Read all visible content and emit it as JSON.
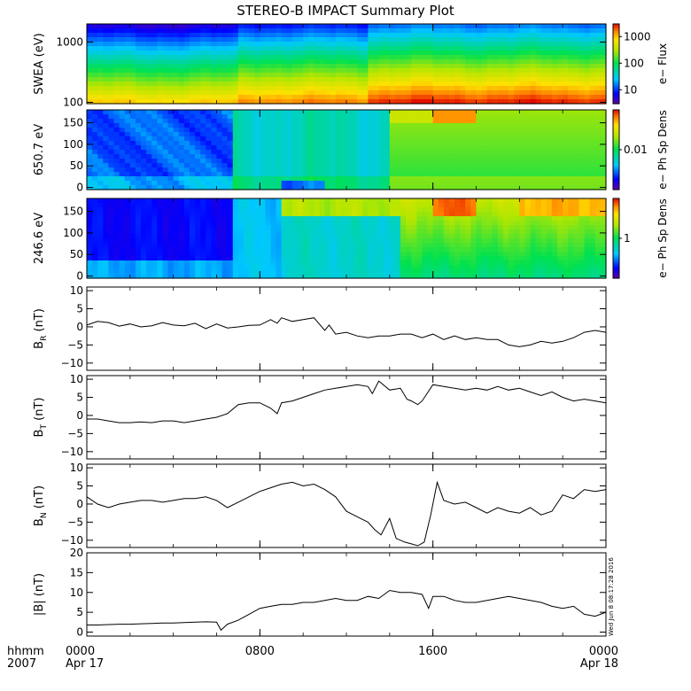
{
  "title": "STEREO-B IMPACT Summary Plot",
  "timestamp": "Wed Jun 8 08:17:28 2016",
  "time_axis": {
    "label_line1": "hhmm",
    "label_line2": "2007",
    "hours": [
      0,
      24
    ],
    "ticks": [
      {
        "hour": 0,
        "text": "0000",
        "date": "Apr 17"
      },
      {
        "hour": 8,
        "text": "0800",
        "date": ""
      },
      {
        "hour": 16,
        "text": "1600",
        "date": ""
      },
      {
        "hour": 24,
        "text": "0000",
        "date": "Apr 18"
      }
    ]
  },
  "chart_data": [
    {
      "type": "heatmap",
      "id": "swea",
      "ylabel": "SWEA (eV)",
      "yscale": "log",
      "ylim": [
        95,
        2000
      ],
      "yticks": [
        {
          "v": 100,
          "t": "100"
        },
        {
          "v": 1000,
          "t": "1000"
        }
      ],
      "colorbar": {
        "label": "e− Flux",
        "scale": "log",
        "range": [
          3,
          3000
        ],
        "ticks": [
          {
            "v": 10,
            "t": "10"
          },
          {
            "v": 100,
            "t": "100"
          },
          {
            "v": 1000,
            "t": "1000"
          }
        ]
      }
    },
    {
      "type": "heatmap",
      "id": "pad650",
      "ylabel": "650.7 eV",
      "ylim": [
        -5,
        180
      ],
      "yticks": [
        {
          "v": 0,
          "t": "0"
        },
        {
          "v": 50,
          "t": "50"
        },
        {
          "v": 100,
          "t": "100"
        },
        {
          "v": 150,
          "t": "150"
        }
      ],
      "colorbar": {
        "label": "e− Ph Sp Dens",
        "scale": "log",
        "range": [
          0.001,
          0.1
        ],
        "ticks": [
          {
            "v": 0.01,
            "t": "0.01"
          }
        ]
      }
    },
    {
      "type": "heatmap",
      "id": "pad246",
      "ylabel": "246.6 eV",
      "ylim": [
        -5,
        180
      ],
      "yticks": [
        {
          "v": 0,
          "t": "0"
        },
        {
          "v": 50,
          "t": "50"
        },
        {
          "v": 100,
          "t": "100"
        },
        {
          "v": 150,
          "t": "150"
        }
      ],
      "colorbar": {
        "label": "e− Ph Sp Dens",
        "scale": "log",
        "range": [
          0.1,
          10
        ],
        "ticks": [
          {
            "v": 1,
            "t": "1"
          }
        ]
      }
    },
    {
      "type": "line",
      "id": "br",
      "ylabel": "B",
      "ylabel_sub": "R",
      "ylabel_unit": " (nT)",
      "ylim": [
        -12,
        11
      ],
      "yticks": [
        {
          "v": -10,
          "t": "−10"
        },
        {
          "v": -5,
          "t": "−5"
        },
        {
          "v": 0,
          "t": "0"
        },
        {
          "v": 5,
          "t": "5"
        },
        {
          "v": 10,
          "t": "10"
        }
      ],
      "x": [
        0,
        0.5,
        1,
        1.5,
        2,
        2.5,
        3,
        3.5,
        4,
        4.5,
        5,
        5.5,
        6,
        6.5,
        7,
        7.5,
        8,
        8.5,
        8.8,
        9,
        9.5,
        10,
        10.5,
        11,
        11.2,
        11.5,
        12,
        12.5,
        13,
        13.5,
        14,
        14.5,
        15,
        15.5,
        16,
        16.5,
        17,
        17.5,
        18,
        18.5,
        19,
        19.5,
        20,
        20.5,
        21,
        21.5,
        22,
        22.5,
        23,
        23.5,
        24
      ],
      "y": [
        0.5,
        1.5,
        1.2,
        0.2,
        0.8,
        0.0,
        0.3,
        1.2,
        0.5,
        0.3,
        1.0,
        -0.5,
        0.8,
        -0.3,
        0.0,
        0.4,
        0.5,
        2.0,
        1.0,
        2.5,
        1.5,
        2.0,
        2.5,
        -1.0,
        0.5,
        -2.0,
        -1.5,
        -2.5,
        -3.0,
        -2.5,
        -2.5,
        -2.0,
        -2.0,
        -3.0,
        -2.0,
        -3.5,
        -2.5,
        -3.5,
        -3.0,
        -3.5,
        -3.5,
        -5.0,
        -5.5,
        -5.0,
        -4.0,
        -4.5,
        -4.0,
        -3.0,
        -1.5,
        -1.0,
        -1.5
      ]
    },
    {
      "type": "line",
      "id": "bt",
      "ylabel": "B",
      "ylabel_sub": "T",
      "ylabel_unit": " (nT)",
      "ylim": [
        -12,
        11
      ],
      "yticks": [
        {
          "v": -10,
          "t": "−10"
        },
        {
          "v": -5,
          "t": "−5"
        },
        {
          "v": 0,
          "t": "0"
        },
        {
          "v": 5,
          "t": "5"
        },
        {
          "v": 10,
          "t": "10"
        }
      ],
      "x": [
        0,
        0.5,
        1,
        1.5,
        2,
        2.5,
        3,
        3.5,
        4,
        4.5,
        5,
        5.5,
        6,
        6.5,
        7,
        7.5,
        8,
        8.5,
        8.8,
        9,
        9.5,
        10,
        10.5,
        11,
        11.5,
        12,
        12.5,
        13,
        13.2,
        13.5,
        14,
        14.5,
        14.8,
        15,
        15.3,
        15.5,
        16,
        16.5,
        17,
        17.5,
        18,
        18.5,
        19,
        19.5,
        20,
        20.5,
        21,
        21.5,
        22,
        22.5,
        23,
        23.5,
        24
      ],
      "y": [
        -1.0,
        -1.0,
        -1.5,
        -2.0,
        -2.0,
        -1.8,
        -2.0,
        -1.5,
        -1.5,
        -2.0,
        -1.5,
        -1.0,
        -0.5,
        0.5,
        3.0,
        3.5,
        3.5,
        2.0,
        0.5,
        3.5,
        4.0,
        5.0,
        6.0,
        7.0,
        7.5,
        8.0,
        8.5,
        8.0,
        6.0,
        9.5,
        7.0,
        7.5,
        4.5,
        4.0,
        3.0,
        4.0,
        8.5,
        8.0,
        7.5,
        7.0,
        7.5,
        7.0,
        8.0,
        7.0,
        7.5,
        6.5,
        5.5,
        6.5,
        5.0,
        4.0,
        4.5,
        4.0,
        3.5
      ]
    },
    {
      "type": "line",
      "id": "bn",
      "ylabel": "B",
      "ylabel_sub": "N",
      "ylabel_unit": " (nT)",
      "ylim": [
        -12,
        11
      ],
      "yticks": [
        {
          "v": -10,
          "t": "−10"
        },
        {
          "v": -5,
          "t": "−5"
        },
        {
          "v": 0,
          "t": "0"
        },
        {
          "v": 5,
          "t": "5"
        },
        {
          "v": 10,
          "t": "10"
        }
      ],
      "x": [
        0,
        0.5,
        1,
        1.5,
        2,
        2.5,
        3,
        3.5,
        4,
        4.5,
        5,
        5.5,
        6,
        6.5,
        7,
        7.5,
        8,
        8.5,
        9,
        9.5,
        10,
        10.5,
        11,
        11.5,
        12,
        12.5,
        13,
        13.3,
        13.6,
        14,
        14.3,
        14.7,
        15,
        15.3,
        15.6,
        15.9,
        16.2,
        16.5,
        17,
        17.5,
        18,
        18.5,
        19,
        19.5,
        20,
        20.5,
        21,
        21.5,
        22,
        22.5,
        23,
        23.5,
        24
      ],
      "y": [
        2.0,
        0.0,
        -1.0,
        0.0,
        0.5,
        1.0,
        1.0,
        0.5,
        1.0,
        1.5,
        1.5,
        2.0,
        1.0,
        -1.0,
        0.5,
        2.0,
        3.5,
        4.5,
        5.5,
        6.0,
        5.0,
        5.5,
        4.0,
        2.0,
        -2.0,
        -3.5,
        -5.0,
        -7.0,
        -8.5,
        -4.0,
        -9.5,
        -10.5,
        -11.0,
        -11.5,
        -10.5,
        -3.0,
        6.0,
        1.0,
        0.0,
        0.5,
        -1.0,
        -2.5,
        -1.0,
        -2.0,
        -2.5,
        -1.0,
        -3.0,
        -2.0,
        2.5,
        1.5,
        4.0,
        3.5,
        4.0
      ]
    },
    {
      "type": "line",
      "id": "bmag",
      "ylabel": "|B| (nT)",
      "ylim": [
        -1,
        20
      ],
      "yticks": [
        {
          "v": 0,
          "t": "0"
        },
        {
          "v": 5,
          "t": "5"
        },
        {
          "v": 10,
          "t": "10"
        },
        {
          "v": 15,
          "t": "15"
        },
        {
          "v": 20,
          "t": "20"
        }
      ],
      "x": [
        0,
        0.5,
        1,
        1.5,
        2,
        2.5,
        3,
        3.5,
        4,
        4.5,
        5,
        5.5,
        6,
        6.2,
        6.5,
        7,
        7.5,
        8,
        8.5,
        9,
        9.5,
        10,
        10.5,
        11,
        11.5,
        12,
        12.5,
        13,
        13.5,
        14,
        14.5,
        15,
        15.5,
        15.8,
        16,
        16.5,
        17,
        17.5,
        18,
        18.5,
        19,
        19.5,
        20,
        20.5,
        21,
        21.5,
        22,
        22.5,
        23,
        23.5,
        24
      ],
      "y": [
        1.8,
        1.8,
        1.9,
        2.0,
        2.0,
        2.1,
        2.2,
        2.3,
        2.3,
        2.4,
        2.5,
        2.6,
        2.5,
        0.5,
        2.0,
        3.0,
        4.5,
        6.0,
        6.5,
        7.0,
        7.0,
        7.5,
        7.5,
        8.0,
        8.5,
        8.0,
        8.0,
        9.0,
        8.5,
        10.5,
        10.0,
        10.0,
        9.5,
        6.0,
        9.0,
        9.0,
        8.0,
        7.5,
        7.5,
        8.0,
        8.5,
        9.0,
        8.5,
        8.0,
        7.5,
        6.5,
        6.0,
        6.5,
        4.5,
        4.0,
        5.0
      ]
    }
  ]
}
